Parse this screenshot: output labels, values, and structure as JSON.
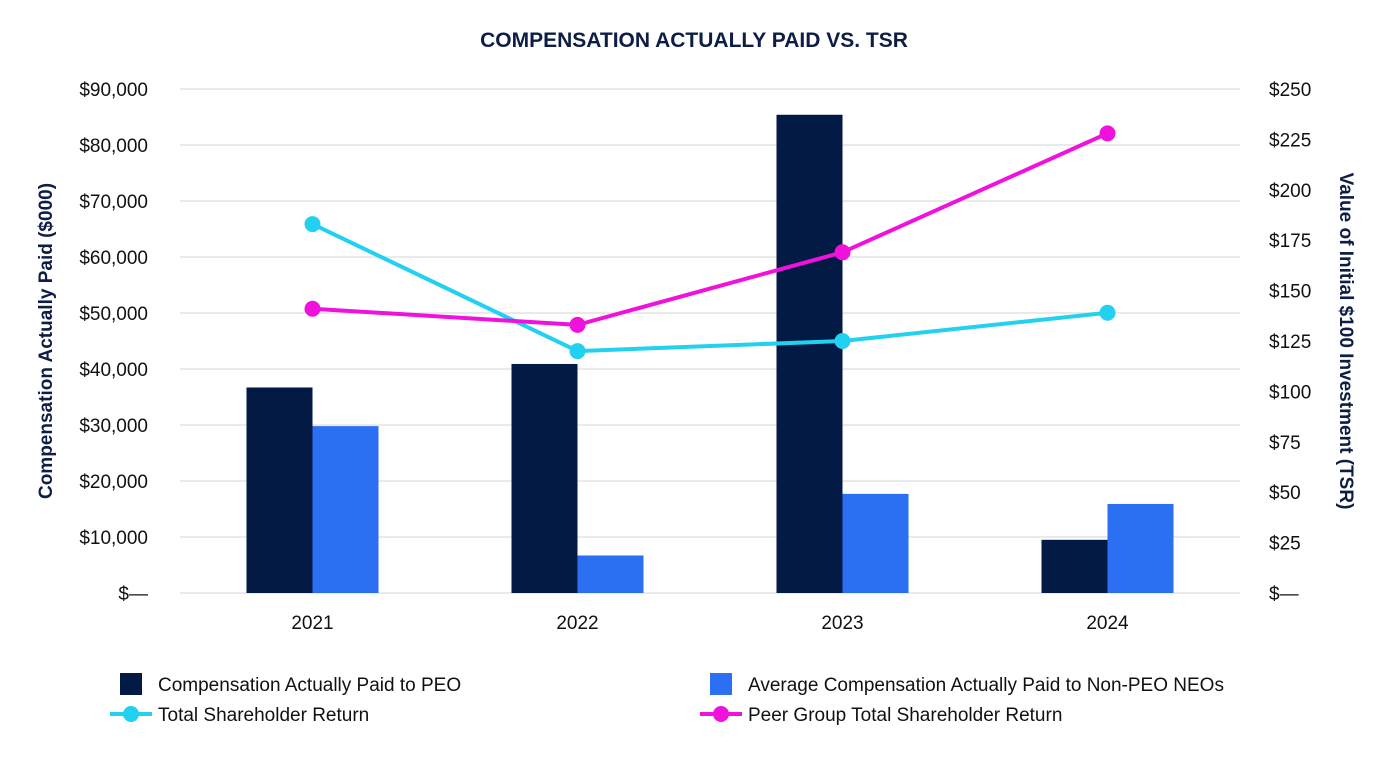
{
  "chart_data": {
    "type": "bar",
    "title": "COMPENSATION ACTUALLY PAID VS. TSR",
    "categories": [
      "2021",
      "2022",
      "2023",
      "2024"
    ],
    "y_left": {
      "label": "Compensation Actually Paid ($000)",
      "ylim": [
        0,
        90000
      ],
      "ticks": [
        0,
        10000,
        20000,
        30000,
        40000,
        50000,
        60000,
        70000,
        80000,
        90000
      ],
      "tick_labels": [
        "$—",
        "$10,000",
        "$20,000",
        "$30,000",
        "$40,000",
        "$50,000",
        "$60,000",
        "$70,000",
        "$80,000",
        "$90,000"
      ]
    },
    "y_right": {
      "label": "Value of Initial $100 Investment (TSR)",
      "ylim": [
        0,
        250
      ],
      "ticks": [
        0,
        25,
        50,
        75,
        100,
        125,
        150,
        175,
        200,
        225,
        250
      ],
      "tick_labels": [
        "$—",
        "$25",
        "$50",
        "$75",
        "$100",
        "$125",
        "$150",
        "$175",
        "$200",
        "$225",
        "$250"
      ]
    },
    "grid": true,
    "legend_position": "bottom",
    "bar_series": [
      {
        "name": "Compensation Actually Paid to PEO",
        "color": "#031a45",
        "values": [
          36700,
          40900,
          85400,
          9500
        ]
      },
      {
        "name": "Average Compensation Actually Paid to Non-PEO NEOs",
        "color": "#2b6ff2",
        "values": [
          29800,
          6700,
          17700,
          15900
        ]
      }
    ],
    "line_series": [
      {
        "name": "Total Shareholder Return",
        "color": "#22d0f0",
        "axis": "right",
        "values": [
          183,
          120,
          125,
          139
        ]
      },
      {
        "name": "Peer Group Total Shareholder Return",
        "color": "#f012dc",
        "axis": "right",
        "values": [
          141,
          133,
          169,
          228
        ]
      }
    ]
  }
}
